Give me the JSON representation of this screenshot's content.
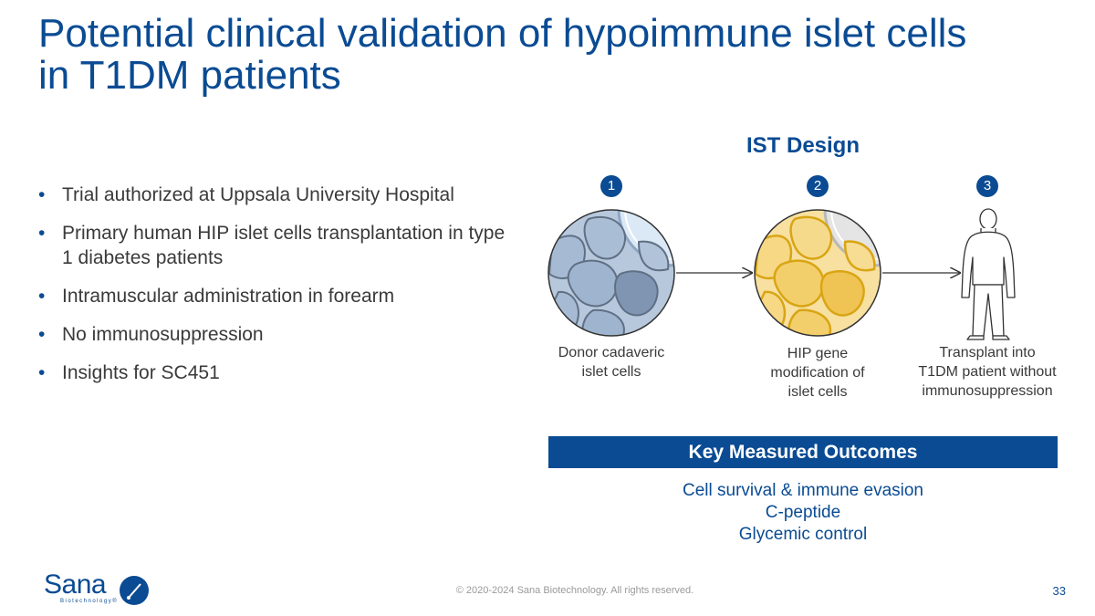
{
  "title_line1": "Potential clinical validation of hypoimmune islet cells",
  "title_line2": "in T1DM patients",
  "bullets": [
    "Trial authorized at Uppsala University Hospital",
    "Primary human HIP islet cells transplantation in type 1 diabetes patients",
    "Intramuscular administration in forearm",
    "No immunosuppression",
    "Insights for SC451"
  ],
  "bullet_glyph": "•",
  "diagram": {
    "title": "IST Design",
    "steps": [
      {
        "number": "1",
        "caption_lines": [
          "Donor cadaveric",
          "islet cells"
        ],
        "icon": "donor-islet-cells-icon"
      },
      {
        "number": "2",
        "caption_lines": [
          "HIP gene",
          "modification of",
          "islet cells"
        ],
        "icon": "hip-modified-islet-cells-icon"
      },
      {
        "number": "3",
        "caption_lines": [
          "Transplant into",
          "T1DM patient without",
          "immunosuppression"
        ],
        "icon": "patient-figure-icon"
      }
    ]
  },
  "outcomes": {
    "header": "Key Measured Outcomes",
    "items": [
      "Cell survival & immune evasion",
      "C-peptide",
      "Glycemic control"
    ]
  },
  "footer": {
    "copyright": "© 2020-2024 Sana Biotechnology. All rights reserved.",
    "page_number": "33",
    "logo_word": "Sana",
    "logo_sub": "Biotechnology®"
  },
  "colors": {
    "brand_blue": "#0a4b93",
    "cell_blue": "#8ea7c4",
    "cell_yellow": "#f4d27a"
  }
}
